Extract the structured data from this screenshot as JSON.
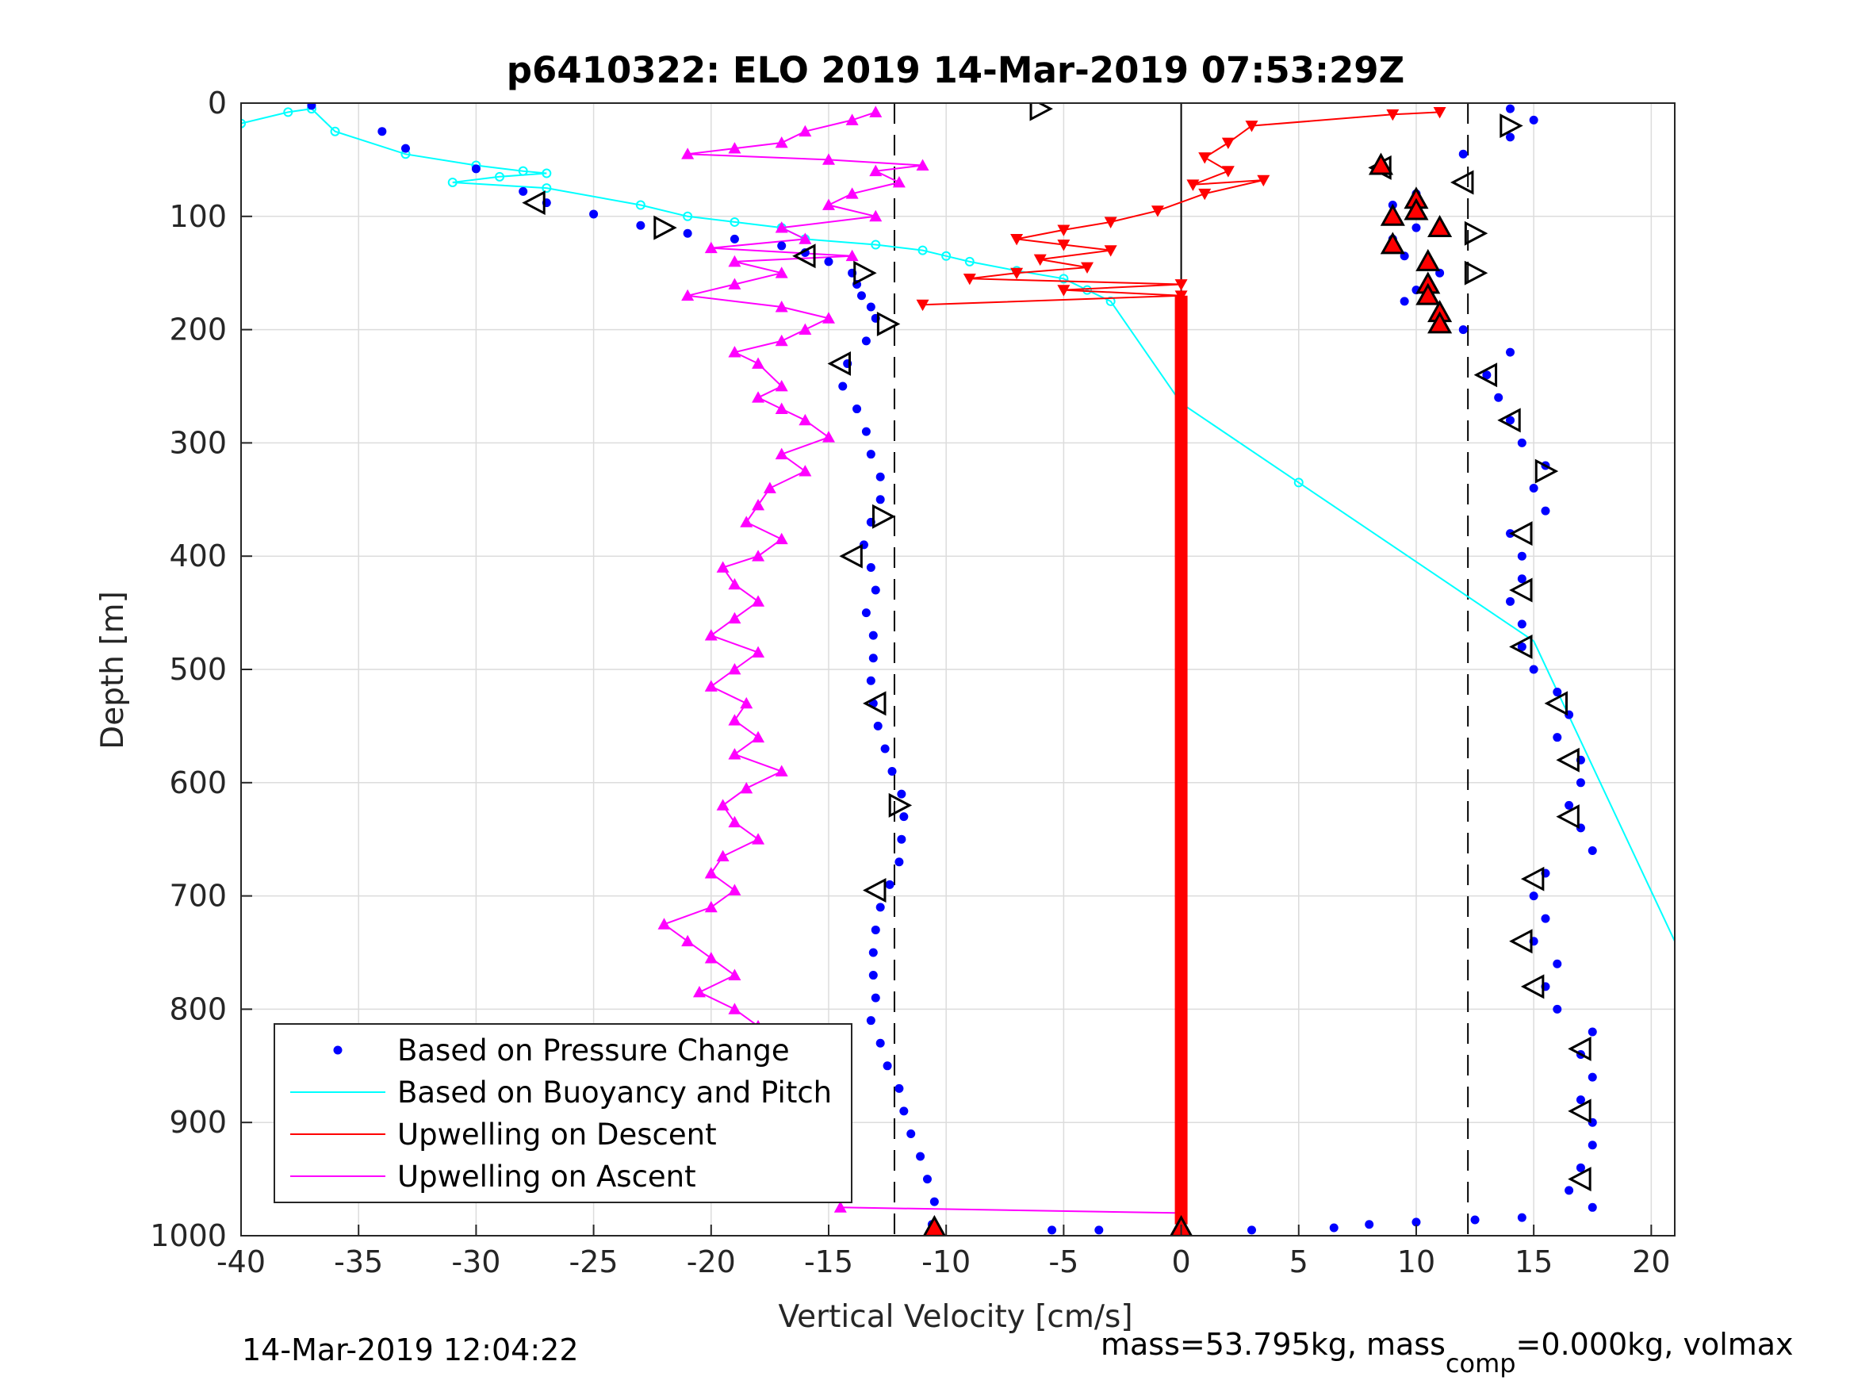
{
  "chart_data": {
    "type": "scatter",
    "title": "p6410322: ELO 2019 14-Mar-2019 07:53:29Z",
    "xlabel": "Vertical Velocity [cm/s]",
    "ylabel": "Depth [m]",
    "xlim": [
      -40,
      21
    ],
    "ylim": [
      0,
      1000
    ],
    "y_reversed": true,
    "grid": true,
    "x_ticks": [
      -40,
      -35,
      -30,
      -25,
      -20,
      -15,
      -10,
      -5,
      0,
      5,
      10,
      15,
      20
    ],
    "y_ticks": [
      0,
      100,
      200,
      300,
      400,
      500,
      600,
      700,
      800,
      900,
      1000
    ],
    "legend_position": "bottom-left",
    "reference_lines": [
      -12.2,
      0,
      12.2
    ],
    "series": [
      {
        "name": "Based on Pressure Change",
        "marker": "dot",
        "color": "#0000ff",
        "descent": [
          [
            -37,
            2
          ],
          [
            -34,
            25
          ],
          [
            -33,
            40
          ],
          [
            -30,
            58
          ],
          [
            -28,
            78
          ],
          [
            -27,
            88
          ],
          [
            -25,
            98
          ],
          [
            -23,
            108
          ],
          [
            -21,
            115
          ],
          [
            -19,
            120
          ],
          [
            -17,
            126
          ],
          [
            -16,
            132
          ],
          [
            -15,
            140
          ],
          [
            -14,
            150
          ],
          [
            -13.8,
            160
          ],
          [
            -13.6,
            170
          ],
          [
            -13.2,
            180
          ],
          [
            -13,
            190
          ],
          [
            -13.4,
            210
          ],
          [
            -14.2,
            230
          ],
          [
            -14.4,
            250
          ],
          [
            -13.8,
            270
          ],
          [
            -13.4,
            290
          ],
          [
            -13.2,
            310
          ],
          [
            -12.8,
            330
          ],
          [
            -12.8,
            350
          ],
          [
            -13.2,
            370
          ],
          [
            -13.5,
            390
          ],
          [
            -13.2,
            410
          ],
          [
            -13,
            430
          ],
          [
            -13.4,
            450
          ],
          [
            -13.1,
            470
          ],
          [
            -13.1,
            490
          ],
          [
            -13.2,
            510
          ],
          [
            -13.1,
            530
          ],
          [
            -12.9,
            550
          ],
          [
            -12.6,
            570
          ],
          [
            -12.3,
            590
          ],
          [
            -11.9,
            610
          ],
          [
            -11.8,
            630
          ],
          [
            -11.9,
            650
          ],
          [
            -12.0,
            670
          ],
          [
            -12.4,
            690
          ],
          [
            -12.8,
            710
          ],
          [
            -13.0,
            730
          ],
          [
            -13.1,
            750
          ],
          [
            -13.1,
            770
          ],
          [
            -13.0,
            790
          ],
          [
            -13.2,
            810
          ],
          [
            -12.8,
            830
          ],
          [
            -12.5,
            850
          ],
          [
            -12.0,
            870
          ],
          [
            -11.8,
            890
          ],
          [
            -11.5,
            910
          ],
          [
            -11.1,
            930
          ],
          [
            -10.8,
            950
          ],
          [
            -10.5,
            970
          ],
          [
            -10.6,
            990
          ]
        ],
        "ascent": [
          [
            14,
            5
          ],
          [
            15,
            15
          ],
          [
            14,
            30
          ],
          [
            12,
            45
          ],
          [
            8.5,
            57
          ],
          [
            10,
            80
          ],
          [
            9,
            90
          ],
          [
            10,
            110
          ],
          [
            9,
            120
          ],
          [
            9.5,
            135
          ],
          [
            11,
            150
          ],
          [
            10,
            165
          ],
          [
            9.5,
            175
          ],
          [
            11,
            190
          ],
          [
            12,
            200
          ],
          [
            14,
            220
          ],
          [
            13,
            240
          ],
          [
            13.5,
            260
          ],
          [
            14,
            280
          ],
          [
            14.5,
            300
          ],
          [
            15.5,
            320
          ],
          [
            15,
            340
          ],
          [
            15.5,
            360
          ],
          [
            14,
            380
          ],
          [
            14.5,
            400
          ],
          [
            14.5,
            420
          ],
          [
            14,
            440
          ],
          [
            14.5,
            460
          ],
          [
            14.5,
            480
          ],
          [
            15,
            500
          ],
          [
            16,
            520
          ],
          [
            16.5,
            540
          ],
          [
            16,
            560
          ],
          [
            17,
            580
          ],
          [
            17,
            600
          ],
          [
            16.5,
            620
          ],
          [
            17,
            640
          ],
          [
            17.5,
            660
          ],
          [
            15.5,
            680
          ],
          [
            15,
            700
          ],
          [
            15.5,
            720
          ],
          [
            15,
            740
          ],
          [
            16,
            760
          ],
          [
            15.5,
            780
          ],
          [
            16,
            800
          ],
          [
            17.5,
            820
          ],
          [
            17,
            840
          ],
          [
            17.5,
            860
          ],
          [
            17,
            880
          ],
          [
            17.5,
            900
          ],
          [
            17.5,
            920
          ],
          [
            17,
            940
          ],
          [
            16.5,
            960
          ],
          [
            17.5,
            975
          ]
        ],
        "bottom": [
          [
            -5.5,
            995
          ],
          [
            -3.5,
            995
          ],
          [
            0,
            995
          ],
          [
            3,
            995
          ],
          [
            6.5,
            993
          ],
          [
            8,
            990
          ],
          [
            10,
            988
          ],
          [
            12.5,
            986
          ],
          [
            14.5,
            984
          ]
        ]
      },
      {
        "name": "Based on Buoyancy and Pitch",
        "marker": "circle",
        "color": "#00ffff",
        "points": [
          [
            -40,
            18
          ],
          [
            -38,
            8
          ],
          [
            -37,
            5
          ],
          [
            -36,
            25
          ],
          [
            -33,
            45
          ],
          [
            -30,
            55
          ],
          [
            -28,
            60
          ],
          [
            -27,
            62
          ],
          [
            -29,
            65
          ],
          [
            -31,
            70
          ],
          [
            -27,
            75
          ],
          [
            -23,
            90
          ],
          [
            -21,
            100
          ],
          [
            -19,
            105
          ],
          [
            -17,
            110
          ],
          [
            -16,
            120
          ],
          [
            -13,
            125
          ],
          [
            -11,
            130
          ],
          [
            -10,
            135
          ],
          [
            -9,
            140
          ],
          [
            -7,
            148
          ],
          [
            -5,
            155
          ],
          [
            -4,
            165
          ],
          [
            -3,
            175
          ],
          [
            0,
            265
          ],
          [
            5,
            335
          ],
          [
            10,
            405
          ],
          [
            15,
            475
          ],
          [
            21,
            740
          ]
        ]
      },
      {
        "name": "Upwelling on Descent",
        "marker": "triangle-down",
        "color": "#ff0000",
        "points": [
          [
            11,
            8
          ],
          [
            9,
            10
          ],
          [
            3,
            20
          ],
          [
            2,
            35
          ],
          [
            1,
            48
          ],
          [
            2,
            60
          ],
          [
            0.5,
            72
          ],
          [
            3.5,
            68
          ],
          [
            1,
            80
          ],
          [
            -1,
            95
          ],
          [
            -3,
            105
          ],
          [
            -5,
            112
          ],
          [
            -7,
            120
          ],
          [
            -5,
            125
          ],
          [
            -3,
            130
          ],
          [
            -6,
            138
          ],
          [
            -4,
            145
          ],
          [
            -7,
            150
          ],
          [
            -9,
            155
          ],
          [
            0,
            160
          ],
          [
            -5,
            165
          ],
          [
            0,
            170
          ],
          [
            -11,
            178
          ]
        ],
        "vertical_line": {
          "x": 0,
          "from": 170,
          "to": 990
        }
      },
      {
        "name": "Upwelling on Ascent",
        "marker": "triangle-up",
        "color": "#ff00ff",
        "points": [
          [
            -13,
            8
          ],
          [
            -14,
            15
          ],
          [
            -16,
            25
          ],
          [
            -17,
            35
          ],
          [
            -19,
            40
          ],
          [
            -21,
            45
          ],
          [
            -15,
            50
          ],
          [
            -11,
            55
          ],
          [
            -13,
            60
          ],
          [
            -12,
            70
          ],
          [
            -14,
            80
          ],
          [
            -15,
            90
          ],
          [
            -13,
            100
          ],
          [
            -17,
            110
          ],
          [
            -16,
            120
          ],
          [
            -20,
            128
          ],
          [
            -14,
            135
          ],
          [
            -19,
            140
          ],
          [
            -17,
            150
          ],
          [
            -19,
            160
          ],
          [
            -21,
            170
          ],
          [
            -17,
            180
          ],
          [
            -15,
            190
          ],
          [
            -16,
            200
          ],
          [
            -17,
            210
          ],
          [
            -19,
            220
          ],
          [
            -18,
            230
          ],
          [
            -17,
            250
          ],
          [
            -18,
            260
          ],
          [
            -17,
            270
          ],
          [
            -16,
            280
          ],
          [
            -15,
            295
          ],
          [
            -17,
            310
          ],
          [
            -16,
            325
          ],
          [
            -17.5,
            340
          ],
          [
            -18,
            355
          ],
          [
            -18.5,
            370
          ],
          [
            -17,
            385
          ],
          [
            -18,
            400
          ],
          [
            -19.5,
            410
          ],
          [
            -19,
            425
          ],
          [
            -18,
            440
          ],
          [
            -19,
            455
          ],
          [
            -20,
            470
          ],
          [
            -18,
            485
          ],
          [
            -19,
            500
          ],
          [
            -20,
            515
          ],
          [
            -18.5,
            530
          ],
          [
            -19,
            545
          ],
          [
            -18,
            560
          ],
          [
            -19,
            575
          ],
          [
            -17,
            590
          ],
          [
            -18.5,
            605
          ],
          [
            -19.5,
            620
          ],
          [
            -19,
            635
          ],
          [
            -18,
            650
          ],
          [
            -19.5,
            665
          ],
          [
            -20,
            680
          ],
          [
            -19,
            695
          ],
          [
            -20,
            710
          ],
          [
            -22,
            725
          ],
          [
            -21,
            740
          ],
          [
            -20,
            755
          ],
          [
            -19,
            770
          ],
          [
            -20.5,
            785
          ],
          [
            -19,
            800
          ],
          [
            -18,
            815
          ],
          [
            -18.5,
            830
          ],
          [
            -19,
            845
          ],
          [
            -18,
            860
          ],
          [
            -18.5,
            875
          ],
          [
            -19.5,
            885
          ],
          [
            -18,
            895
          ],
          [
            -17,
            905
          ],
          [
            -16.5,
            915
          ],
          [
            -16,
            925
          ],
          [
            -18,
            935
          ],
          [
            -17,
            945
          ],
          [
            -16,
            955
          ],
          [
            -14.5,
            965
          ],
          [
            -14.5,
            975
          ],
          [
            0,
            980
          ]
        ]
      }
    ],
    "direction_markers": {
      "left": [
        [
          -27.5,
          88
        ],
        [
          -16,
          135
        ],
        [
          -14.5,
          230
        ],
        [
          -14,
          400
        ],
        [
          -13,
          530
        ],
        [
          -13,
          695
        ],
        [
          8.5,
          57
        ],
        [
          12,
          70
        ],
        [
          13,
          240
        ],
        [
          14,
          280
        ],
        [
          14.5,
          380
        ],
        [
          14.5,
          430
        ],
        [
          14.5,
          480
        ],
        [
          16,
          530
        ],
        [
          16.5,
          580
        ],
        [
          16.5,
          630
        ],
        [
          15,
          685
        ],
        [
          14.5,
          740
        ],
        [
          15,
          780
        ],
        [
          17,
          835
        ],
        [
          17,
          890
        ],
        [
          17,
          950
        ]
      ],
      "right": [
        [
          -6,
          5
        ],
        [
          -22,
          110
        ],
        [
          -13.5,
          150
        ],
        [
          -12.5,
          195
        ],
        [
          -12.7,
          365
        ],
        [
          -12,
          620
        ],
        [
          14,
          20
        ],
        [
          12.5,
          115
        ],
        [
          12.5,
          150
        ],
        [
          15.5,
          325
        ]
      ]
    },
    "red_up_markers": [
      [
        8.5,
        55
      ],
      [
        10,
        85
      ],
      [
        10,
        95
      ],
      [
        9,
        100
      ],
      [
        11,
        110
      ],
      [
        9,
        125
      ],
      [
        10.5,
        140
      ],
      [
        10.5,
        160
      ],
      [
        10.5,
        170
      ],
      [
        11,
        185
      ],
      [
        11,
        195
      ],
      [
        -10.5,
        993
      ],
      [
        0,
        993
      ]
    ],
    "legend": [
      "Based on Pressure Change",
      "Based on Buoyancy and Pitch",
      "Upwelling on Descent",
      "Upwelling on Ascent"
    ]
  },
  "footer": {
    "timestamp": "14-Mar-2019 12:04:22",
    "mass_prefix": "mass=53.795kg, mass",
    "mass_sub": "comp",
    "mass_suffix": "=0.000kg, volmax"
  }
}
